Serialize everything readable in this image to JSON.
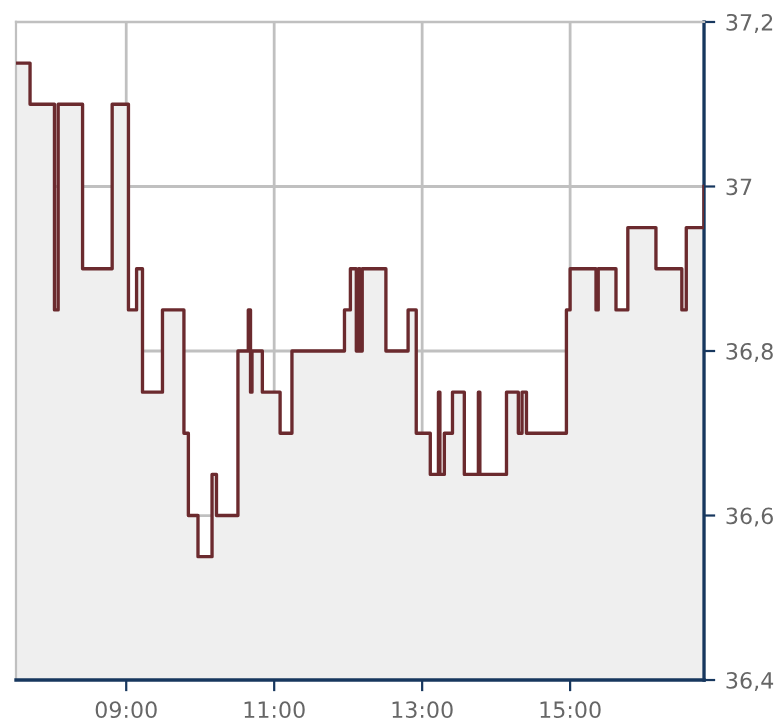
{
  "chart_data": {
    "type": "step",
    "x": [
      7.51,
      7.7,
      8.03,
      8.08,
      8.41,
      8.81,
      9.03,
      9.14,
      9.22,
      9.49,
      9.78,
      9.84,
      9.97,
      10.16,
      10.22,
      10.51,
      10.65,
      10.68,
      10.7,
      10.84,
      11.08,
      11.24,
      11.95,
      12.03,
      12.11,
      12.14,
      12.16,
      12.19,
      12.51,
      12.81,
      12.92,
      13.11,
      13.22,
      13.24,
      13.3,
      13.41,
      13.57,
      13.76,
      13.78,
      14.14,
      14.3,
      14.35,
      14.41,
      14.95,
      15.0,
      15.35,
      15.38,
      15.62,
      15.78,
      16.16,
      16.51,
      16.57,
      16.81
    ],
    "series": [
      {
        "type": "area",
        "color": "#efefef",
        "values": [
          37.15,
          37.1,
          36.85,
          37.1,
          36.9,
          37.1,
          36.85,
          36.9,
          36.75,
          36.85,
          36.7,
          36.6,
          36.55,
          36.65,
          36.6,
          36.8,
          36.85,
          36.75,
          36.8,
          36.75,
          36.7,
          36.8,
          36.85,
          36.9,
          36.8,
          36.9,
          36.8,
          36.9,
          36.8,
          36.85,
          36.7,
          36.65,
          36.75,
          36.65,
          36.7,
          36.75,
          36.65,
          36.75,
          36.65,
          36.75,
          36.7,
          36.75,
          36.7,
          36.85,
          36.9,
          36.85,
          36.9,
          36.85,
          36.95,
          36.9,
          36.85,
          36.95,
          37.0
        ]
      },
      {
        "color": "#6b2a2e",
        "values": [
          37.15,
          37.1,
          36.85,
          37.1,
          36.9,
          37.1,
          36.85,
          36.9,
          36.75,
          36.85,
          36.7,
          36.6,
          36.55,
          36.65,
          36.6,
          36.8,
          36.85,
          36.75,
          36.8,
          36.75,
          36.7,
          36.8,
          36.85,
          36.9,
          36.8,
          36.9,
          36.8,
          36.9,
          36.8,
          36.85,
          36.7,
          36.65,
          36.75,
          36.65,
          36.7,
          36.75,
          36.65,
          36.75,
          36.65,
          36.75,
          36.7,
          36.75,
          36.7,
          36.85,
          36.9,
          36.85,
          36.9,
          36.85,
          36.95,
          36.9,
          36.85,
          36.95,
          37.0
        ]
      }
    ],
    "xlim": [
      7.51,
      16.81
    ],
    "ylim": [
      36.4,
      37.2
    ],
    "xticks": [
      {
        "value": 9,
        "label": "09:00"
      },
      {
        "value": 11,
        "label": "11:00"
      },
      {
        "value": 13,
        "label": "13:00"
      },
      {
        "value": 15,
        "label": "15:00"
      }
    ],
    "yticks": [
      {
        "value": 36.4,
        "label": "36,4"
      },
      {
        "value": 36.6,
        "label": "36,6"
      },
      {
        "value": 36.8,
        "label": "36,8"
      },
      {
        "value": 37,
        "label": "37"
      },
      {
        "value": 37.2,
        "label": "37,2"
      }
    ],
    "grid": true
  }
}
